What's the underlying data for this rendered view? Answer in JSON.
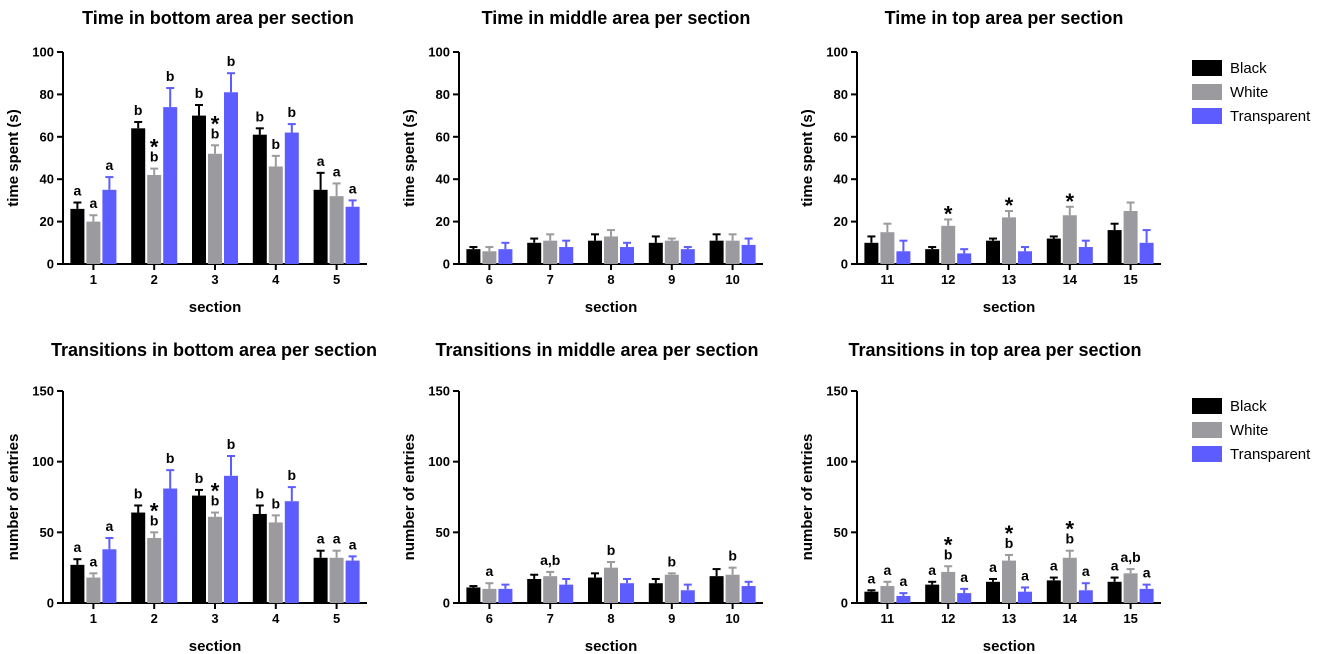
{
  "colors": {
    "Black": "#000000",
    "White": "#9b9b9f",
    "Transparent": "#5c5cff"
  },
  "legend": [
    "Black",
    "White",
    "Transparent"
  ],
  "chart_data": [
    {
      "type": "bar",
      "title": "Time in bottom area per section",
      "xlabel": "section",
      "ylabel": "time spent (s)",
      "ylim": [
        0,
        100
      ],
      "yticks": [
        "0",
        "20",
        "40",
        "60",
        "80",
        "100"
      ],
      "categories": [
        "1",
        "2",
        "3",
        "4",
        "5"
      ],
      "series": [
        {
          "name": "Black",
          "values": [
            26,
            64,
            70,
            61,
            35
          ],
          "errors": [
            3,
            3,
            5,
            3,
            8
          ]
        },
        {
          "name": "White",
          "values": [
            20,
            42,
            52,
            46,
            32
          ],
          "errors": [
            3,
            3,
            4,
            5,
            6
          ]
        },
        {
          "name": "Transparent",
          "values": [
            35,
            74,
            81,
            62,
            27
          ],
          "errors": [
            6,
            9,
            9,
            4,
            3
          ]
        }
      ],
      "letters": [
        [
          "a",
          "a",
          "a"
        ],
        [
          "b",
          "b",
          "b"
        ],
        [
          "b",
          "b",
          "b"
        ],
        [
          "b",
          "b",
          "b"
        ],
        [
          "a",
          "a",
          "a"
        ]
      ],
      "stars": [
        false,
        true,
        true,
        false,
        false
      ]
    },
    {
      "type": "bar",
      "title": "Time in middle area per section",
      "xlabel": "section",
      "ylabel": "time spent (s)",
      "ylim": [
        0,
        100
      ],
      "yticks": [
        "0",
        "20",
        "40",
        "60",
        "80",
        "100"
      ],
      "categories": [
        "6",
        "7",
        "8",
        "9",
        "10"
      ],
      "series": [
        {
          "name": "Black",
          "values": [
            7,
            10,
            11,
            10,
            11
          ],
          "errors": [
            1,
            2,
            3,
            3,
            3
          ]
        },
        {
          "name": "White",
          "values": [
            6,
            11,
            13,
            11,
            11
          ],
          "errors": [
            2,
            3,
            3,
            1,
            3
          ]
        },
        {
          "name": "Transparent",
          "values": [
            7,
            8,
            8,
            7,
            9
          ],
          "errors": [
            3,
            3,
            2,
            1,
            3
          ]
        }
      ],
      "letters": [
        [
          "",
          "",
          ""
        ],
        [
          "",
          "",
          ""
        ],
        [
          "",
          "",
          ""
        ],
        [
          "",
          "",
          ""
        ],
        [
          "",
          "",
          ""
        ]
      ],
      "stars": [
        false,
        false,
        false,
        false,
        false
      ]
    },
    {
      "type": "bar",
      "title": "Time in top area per section",
      "xlabel": "section",
      "ylabel": "time spent (s)",
      "ylim": [
        0,
        100
      ],
      "yticks": [
        "0",
        "20",
        "40",
        "60",
        "80",
        "100"
      ],
      "categories": [
        "11",
        "12",
        "13",
        "14",
        "15"
      ],
      "series": [
        {
          "name": "Black",
          "values": [
            10,
            7,
            11,
            12,
            16
          ],
          "errors": [
            3,
            1,
            1,
            1,
            3
          ]
        },
        {
          "name": "White",
          "values": [
            15,
            18,
            22,
            23,
            25
          ],
          "errors": [
            4,
            3,
            3,
            4,
            4
          ]
        },
        {
          "name": "Transparent",
          "values": [
            6,
            5,
            6,
            8,
            10
          ],
          "errors": [
            5,
            2,
            2,
            3,
            6
          ]
        }
      ],
      "letters": [
        [
          "",
          "",
          ""
        ],
        [
          "",
          "",
          ""
        ],
        [
          "",
          "",
          ""
        ],
        [
          "",
          "",
          ""
        ],
        [
          "",
          "",
          ""
        ]
      ],
      "stars": [
        false,
        true,
        true,
        true,
        false
      ]
    },
    {
      "type": "bar",
      "title": "Transitions in bottom area per section",
      "xlabel": "section",
      "ylabel": "number of entries",
      "ylim": [
        0,
        150
      ],
      "yticks": [
        "0",
        "50",
        "100",
        "150"
      ],
      "categories": [
        "1",
        "2",
        "3",
        "4",
        "5"
      ],
      "series": [
        {
          "name": "Black",
          "values": [
            27,
            64,
            76,
            63,
            32
          ],
          "errors": [
            4,
            5,
            4,
            6,
            5
          ]
        },
        {
          "name": "White",
          "values": [
            18,
            46,
            61,
            57,
            32
          ],
          "errors": [
            3,
            4,
            3,
            5,
            5
          ]
        },
        {
          "name": "Transparent",
          "values": [
            38,
            81,
            90,
            72,
            30
          ],
          "errors": [
            8,
            13,
            14,
            10,
            3
          ]
        }
      ],
      "letters": [
        [
          "a",
          "a",
          "a"
        ],
        [
          "b",
          "b",
          "b"
        ],
        [
          "b",
          "b",
          "b"
        ],
        [
          "b",
          "b",
          "b"
        ],
        [
          "a",
          "a",
          "a"
        ]
      ],
      "stars": [
        false,
        true,
        true,
        false,
        false
      ]
    },
    {
      "type": "bar",
      "title": "Transitions in middle area per section",
      "xlabel": "section",
      "ylabel": "number of entries",
      "ylim": [
        0,
        150
      ],
      "yticks": [
        "0",
        "50",
        "100",
        "150"
      ],
      "categories": [
        "6",
        "7",
        "8",
        "9",
        "10"
      ],
      "series": [
        {
          "name": "Black",
          "values": [
            11,
            17,
            18,
            14,
            19
          ],
          "errors": [
            1,
            3,
            3,
            3,
            5
          ]
        },
        {
          "name": "White",
          "values": [
            10,
            19,
            25,
            20,
            20
          ],
          "errors": [
            4,
            3,
            4,
            1,
            5
          ]
        },
        {
          "name": "Transparent",
          "values": [
            10,
            13,
            14,
            9,
            12
          ],
          "errors": [
            3,
            4,
            3,
            4,
            3
          ]
        }
      ],
      "letters": [
        [
          "",
          "a",
          ""
        ],
        [
          "",
          "a,b",
          ""
        ],
        [
          "",
          "b",
          ""
        ],
        [
          "",
          "b",
          ""
        ],
        [
          "",
          "b",
          ""
        ]
      ],
      "stars": [
        false,
        false,
        false,
        false,
        false
      ]
    },
    {
      "type": "bar",
      "title": "Transitions in top area per section",
      "xlabel": "section",
      "ylabel": "number of entries",
      "ylim": [
        0,
        150
      ],
      "yticks": [
        "0",
        "50",
        "100",
        "150"
      ],
      "categories": [
        "11",
        "12",
        "13",
        "14",
        "15"
      ],
      "series": [
        {
          "name": "Black",
          "values": [
            8,
            13,
            15,
            16,
            15
          ],
          "errors": [
            1,
            2,
            2,
            2,
            3
          ]
        },
        {
          "name": "White",
          "values": [
            12,
            22,
            30,
            32,
            21
          ],
          "errors": [
            3,
            4,
            4,
            5,
            3
          ]
        },
        {
          "name": "Transparent",
          "values": [
            5,
            7,
            8,
            9,
            10
          ],
          "errors": [
            2,
            3,
            3,
            5,
            3
          ]
        }
      ],
      "letters": [
        [
          "a",
          "a",
          "a"
        ],
        [
          "a",
          "b",
          "a"
        ],
        [
          "a",
          "b",
          "a"
        ],
        [
          "a",
          "b",
          "a"
        ],
        [
          "a",
          "a,b",
          "a"
        ]
      ],
      "stars": [
        false,
        true,
        true,
        true,
        false
      ]
    }
  ]
}
